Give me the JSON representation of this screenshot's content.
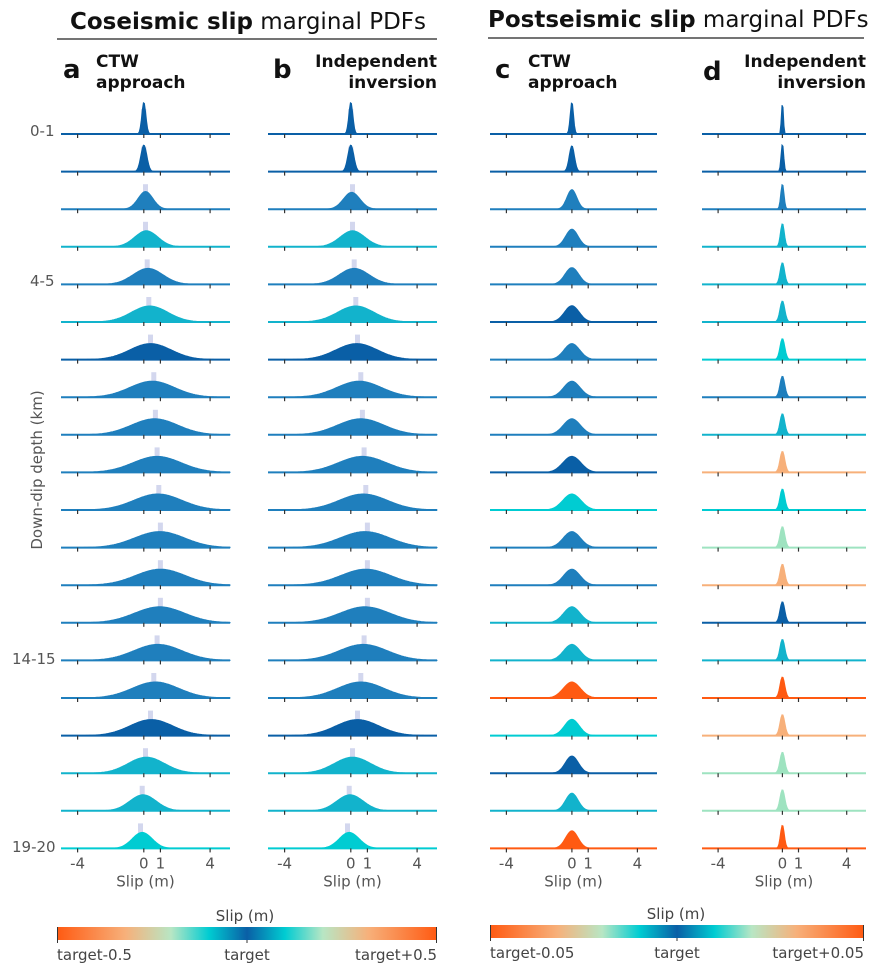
{
  "titles": {
    "coseismic": {
      "bold": "Coseismic slip",
      "rest": " marginal PDFs"
    },
    "postseismic": {
      "bold": "Postseismic slip",
      "rest": " marginal PDFs"
    }
  },
  "depth_axis": {
    "label": "Down-dip depth (km)",
    "row_labels": [
      "0-1",
      "4-5",
      "14-15",
      "19-20"
    ]
  },
  "colorbars": [
    {
      "label": "Slip (m)",
      "tick_labels": [
        "target-0.5",
        "target",
        "target+0.5"
      ]
    },
    {
      "label": "Slip (m)",
      "tick_labels": [
        "target-0.05",
        "target",
        "target+0.05"
      ]
    }
  ],
  "colors": {
    "navy": "#0a5fa6",
    "blue": "#1f7fbd",
    "cyan": "#12b3cc",
    "teal": "#00ccd2",
    "mint": "#9ee3c0",
    "peach": "#f7b07a",
    "orange": "#ff5a12",
    "target_line": "#d3d7ee"
  },
  "chart_data": [
    {
      "type": "area",
      "panel": "a",
      "title": "CTW approach",
      "xlabel": "Slip (m)",
      "xlim": [
        -5,
        5.2
      ],
      "xticks": [
        -4,
        0,
        1,
        4
      ],
      "rows": 20,
      "target": [
        0,
        0,
        0.1,
        0.1,
        0.2,
        0.3,
        0.4,
        0.6,
        0.7,
        0.8,
        0.9,
        1.0,
        1.0,
        1.0,
        0.8,
        0.6,
        0.4,
        0.1,
        -0.1,
        -0.2
      ],
      "peak": [
        0,
        0,
        0.1,
        0.15,
        0.25,
        0.35,
        0.4,
        0.5,
        0.65,
        0.8,
        0.85,
        0.95,
        1.0,
        0.95,
        0.85,
        0.7,
        0.45,
        0.15,
        -0.05,
        -0.1
      ],
      "width": [
        0.12,
        0.18,
        0.45,
        0.7,
        0.9,
        1.1,
        1.25,
        1.35,
        1.4,
        1.45,
        1.45,
        1.5,
        1.5,
        1.5,
        1.45,
        1.4,
        1.3,
        1.1,
        0.8,
        0.6
      ],
      "color": [
        "navy",
        "navy",
        "blue",
        "cyan",
        "blue",
        "cyan",
        "navy",
        "blue",
        "blue",
        "blue",
        "blue",
        "blue",
        "blue",
        "blue",
        "blue",
        "blue",
        "navy",
        "cyan",
        "cyan",
        "teal"
      ]
    },
    {
      "type": "area",
      "panel": "b",
      "title": "Independent inversion",
      "xlabel": "Slip (m)",
      "xlim": [
        -5,
        5.2
      ],
      "xticks": [
        -4,
        0,
        1,
        4
      ],
      "rows": 20,
      "target": [
        0,
        0,
        0.1,
        0.1,
        0.2,
        0.3,
        0.4,
        0.6,
        0.7,
        0.8,
        0.9,
        1.0,
        1.0,
        1.0,
        0.8,
        0.6,
        0.4,
        0.1,
        -0.1,
        -0.2
      ],
      "peak": [
        0,
        0,
        0.05,
        0.1,
        0.2,
        0.3,
        0.35,
        0.5,
        0.6,
        0.7,
        0.75,
        0.85,
        0.9,
        0.85,
        0.75,
        0.6,
        0.4,
        0.1,
        -0.05,
        -0.1
      ],
      "width": [
        0.12,
        0.18,
        0.5,
        0.75,
        0.9,
        1.1,
        1.25,
        1.35,
        1.4,
        1.45,
        1.45,
        1.5,
        1.5,
        1.5,
        1.45,
        1.4,
        1.3,
        1.1,
        0.8,
        0.6
      ],
      "color": [
        "navy",
        "navy",
        "blue",
        "cyan",
        "blue",
        "cyan",
        "navy",
        "blue",
        "blue",
        "blue",
        "blue",
        "blue",
        "blue",
        "blue",
        "blue",
        "blue",
        "navy",
        "cyan",
        "cyan",
        "teal"
      ]
    },
    {
      "type": "area",
      "panel": "c",
      "title": "CTW approach",
      "xlabel": "Slip (m)",
      "xlim": [
        -5,
        5.2
      ],
      "xticks": [
        -4,
        0,
        1,
        4
      ],
      "rows": 20,
      "peak": [
        0,
        0,
        0,
        0,
        0,
        0,
        0,
        0,
        0,
        0,
        0,
        0,
        0,
        0,
        0,
        0,
        0,
        0,
        0,
        0
      ],
      "width": [
        0.1,
        0.16,
        0.3,
        0.38,
        0.42,
        0.45,
        0.48,
        0.5,
        0.52,
        0.55,
        0.55,
        0.52,
        0.5,
        0.5,
        0.5,
        0.52,
        0.45,
        0.4,
        0.38,
        0.38
      ],
      "color": [
        "navy",
        "navy",
        "blue",
        "blue",
        "blue",
        "navy",
        "blue",
        "blue",
        "blue",
        "navy",
        "teal",
        "blue",
        "blue",
        "cyan",
        "cyan",
        "orange",
        "teal",
        "navy",
        "cyan",
        "orange"
      ]
    },
    {
      "type": "area",
      "panel": "d",
      "title": "Independent inversion",
      "xlabel": "Slip (m)",
      "xlim": [
        -5,
        5.2
      ],
      "xticks": [
        -4,
        0,
        1,
        4
      ],
      "rows": 20,
      "peak": [
        0,
        0,
        0,
        0,
        0,
        0,
        0,
        0,
        0,
        0,
        0,
        0,
        0,
        0,
        0,
        0,
        0,
        0,
        0,
        0
      ],
      "width": [
        0.06,
        0.08,
        0.1,
        0.12,
        0.14,
        0.15,
        0.15,
        0.15,
        0.15,
        0.15,
        0.15,
        0.15,
        0.15,
        0.15,
        0.15,
        0.15,
        0.15,
        0.15,
        0.15,
        0.12
      ],
      "color": [
        "navy",
        "navy",
        "blue",
        "cyan",
        "cyan",
        "cyan",
        "teal",
        "blue",
        "cyan",
        "peach",
        "teal",
        "mint",
        "peach",
        "navy",
        "cyan",
        "orange",
        "peach",
        "mint",
        "mint",
        "orange"
      ]
    }
  ]
}
